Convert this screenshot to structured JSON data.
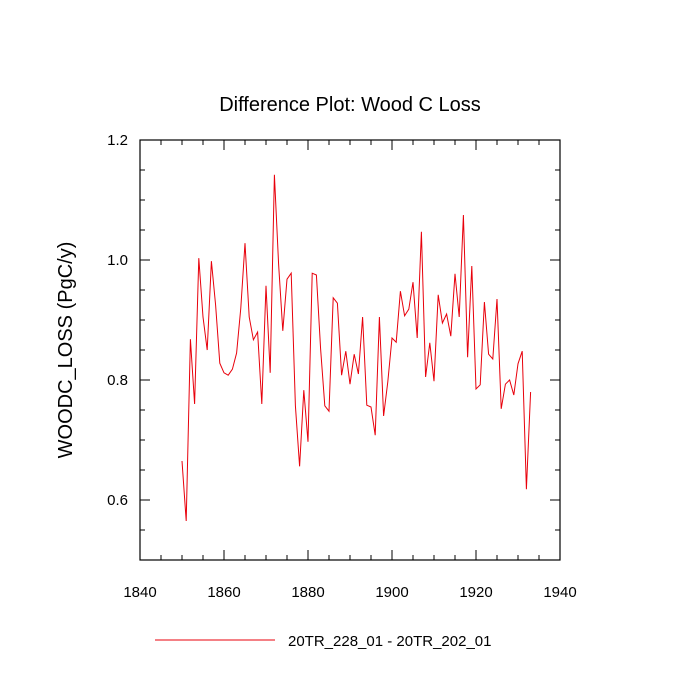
{
  "chart_data": {
    "type": "line",
    "title": "Difference Plot: Wood C Loss",
    "xlabel": "",
    "ylabel": "WOODC_LOSS  (PgC/y)",
    "xlim": [
      1840,
      1940
    ],
    "ylim": [
      0.5,
      1.2
    ],
    "xticks": [
      1840,
      1860,
      1880,
      1900,
      1920,
      1940
    ],
    "xtick_labels": [
      "1840",
      "1860",
      "1880",
      "1900",
      "1920",
      "1940"
    ],
    "yticks": [
      0.6,
      0.8,
      1.0,
      1.2
    ],
    "ytick_labels": [
      "0.6",
      "0.8",
      "1.0",
      "1.2"
    ],
    "legend_position": "bottom",
    "series": [
      {
        "name": "20TR_228_01 - 20TR_202_01",
        "color": "#e8000b",
        "x": [
          1850,
          1851,
          1852,
          1853,
          1854,
          1855,
          1856,
          1857,
          1858,
          1859,
          1860,
          1861,
          1862,
          1863,
          1864,
          1865,
          1866,
          1867,
          1868,
          1869,
          1870,
          1871,
          1872,
          1873,
          1874,
          1875,
          1876,
          1877,
          1878,
          1879,
          1880,
          1881,
          1882,
          1883,
          1884,
          1885,
          1886,
          1887,
          1888,
          1889,
          1890,
          1891,
          1892,
          1893,
          1894,
          1895,
          1896,
          1897,
          1898,
          1899,
          1900,
          1901,
          1902,
          1903,
          1904,
          1905,
          1906,
          1907,
          1908,
          1909,
          1910,
          1911,
          1912,
          1913,
          1914,
          1915,
          1916,
          1917,
          1918,
          1919,
          1920,
          1921,
          1922,
          1923,
          1924,
          1925,
          1926,
          1927,
          1928,
          1929,
          1930,
          1931,
          1932,
          1933
        ],
        "values": [
          0.665,
          0.565,
          0.868,
          0.76,
          1.003,
          0.905,
          0.85,
          0.998,
          0.925,
          0.828,
          0.812,
          0.808,
          0.818,
          0.845,
          0.92,
          1.028,
          0.905,
          0.867,
          0.88,
          0.76,
          0.957,
          0.812,
          1.142,
          0.993,
          0.882,
          0.968,
          0.978,
          0.757,
          0.656,
          0.783,
          0.697,
          0.978,
          0.975,
          0.852,
          0.757,
          0.748,
          0.937,
          0.928,
          0.808,
          0.848,
          0.793,
          0.843,
          0.81,
          0.905,
          0.758,
          0.755,
          0.708,
          0.905,
          0.74,
          0.797,
          0.87,
          0.863,
          0.948,
          0.907,
          0.918,
          0.963,
          0.87,
          1.047,
          0.805,
          0.862,
          0.798,
          0.942,
          0.895,
          0.91,
          0.873,
          0.977,
          0.905,
          1.075,
          0.838,
          0.99,
          0.785,
          0.792,
          0.93,
          0.843,
          0.835,
          0.935,
          0.752,
          0.793,
          0.8,
          0.775,
          0.827,
          0.848,
          0.618,
          0.78
        ]
      }
    ]
  }
}
